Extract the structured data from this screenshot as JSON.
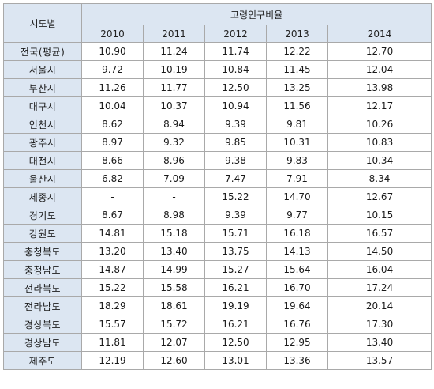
{
  "table": {
    "corner_header": "시도별",
    "group_header": "고령인구비율",
    "years": [
      "2010",
      "2011",
      "2012",
      "2013",
      "2014"
    ],
    "rows": [
      {
        "region": "전국(평균)",
        "values": [
          "10.90",
          "11.24",
          "11.74",
          "12.22",
          "12.70"
        ]
      },
      {
        "region": "서울시",
        "values": [
          "9.72",
          "10.19",
          "10.84",
          "11.45",
          "12.04"
        ]
      },
      {
        "region": "부산시",
        "values": [
          "11.26",
          "11.77",
          "12.50",
          "13.25",
          "13.98"
        ]
      },
      {
        "region": "대구시",
        "values": [
          "10.04",
          "10.37",
          "10.94",
          "11.56",
          "12.17"
        ]
      },
      {
        "region": "인천시",
        "values": [
          "8.62",
          "8.94",
          "9.39",
          "9.81",
          "10.26"
        ]
      },
      {
        "region": "광주시",
        "values": [
          "8.97",
          "9.32",
          "9.85",
          "10.31",
          "10.83"
        ]
      },
      {
        "region": "대전시",
        "values": [
          "8.66",
          "8.96",
          "9.38",
          "9.83",
          "10.34"
        ]
      },
      {
        "region": "울산시",
        "values": [
          "6.82",
          "7.09",
          "7.47",
          "7.91",
          "8.34"
        ]
      },
      {
        "region": "세종시",
        "values": [
          "-",
          "-",
          "15.22",
          "14.70",
          "12.67"
        ]
      },
      {
        "region": "경기도",
        "values": [
          "8.67",
          "8.98",
          "9.39",
          "9.77",
          "10.15"
        ]
      },
      {
        "region": "강원도",
        "values": [
          "14.81",
          "15.18",
          "15.71",
          "16.18",
          "16.57"
        ]
      },
      {
        "region": "충청북도",
        "values": [
          "13.20",
          "13.40",
          "13.75",
          "14.13",
          "14.50"
        ]
      },
      {
        "region": "충청남도",
        "values": [
          "14.87",
          "14.99",
          "15.27",
          "15.64",
          "16.04"
        ]
      },
      {
        "region": "전라북도",
        "values": [
          "15.22",
          "15.58",
          "16.21",
          "16.70",
          "17.24"
        ]
      },
      {
        "region": "전라남도",
        "values": [
          "18.29",
          "18.61",
          "19.19",
          "19.64",
          "20.14"
        ]
      },
      {
        "region": "경상북도",
        "values": [
          "15.57",
          "15.72",
          "16.21",
          "16.76",
          "17.30"
        ]
      },
      {
        "region": "경상남도",
        "values": [
          "11.81",
          "12.07",
          "12.50",
          "12.95",
          "13.40"
        ]
      },
      {
        "region": "제주도",
        "values": [
          "12.19",
          "12.60",
          "13.01",
          "13.36",
          "13.57"
        ]
      }
    ]
  },
  "colors": {
    "header_bg": "#dce6f2",
    "grid": "#a9a9a9",
    "text": "#1a1a1a"
  }
}
